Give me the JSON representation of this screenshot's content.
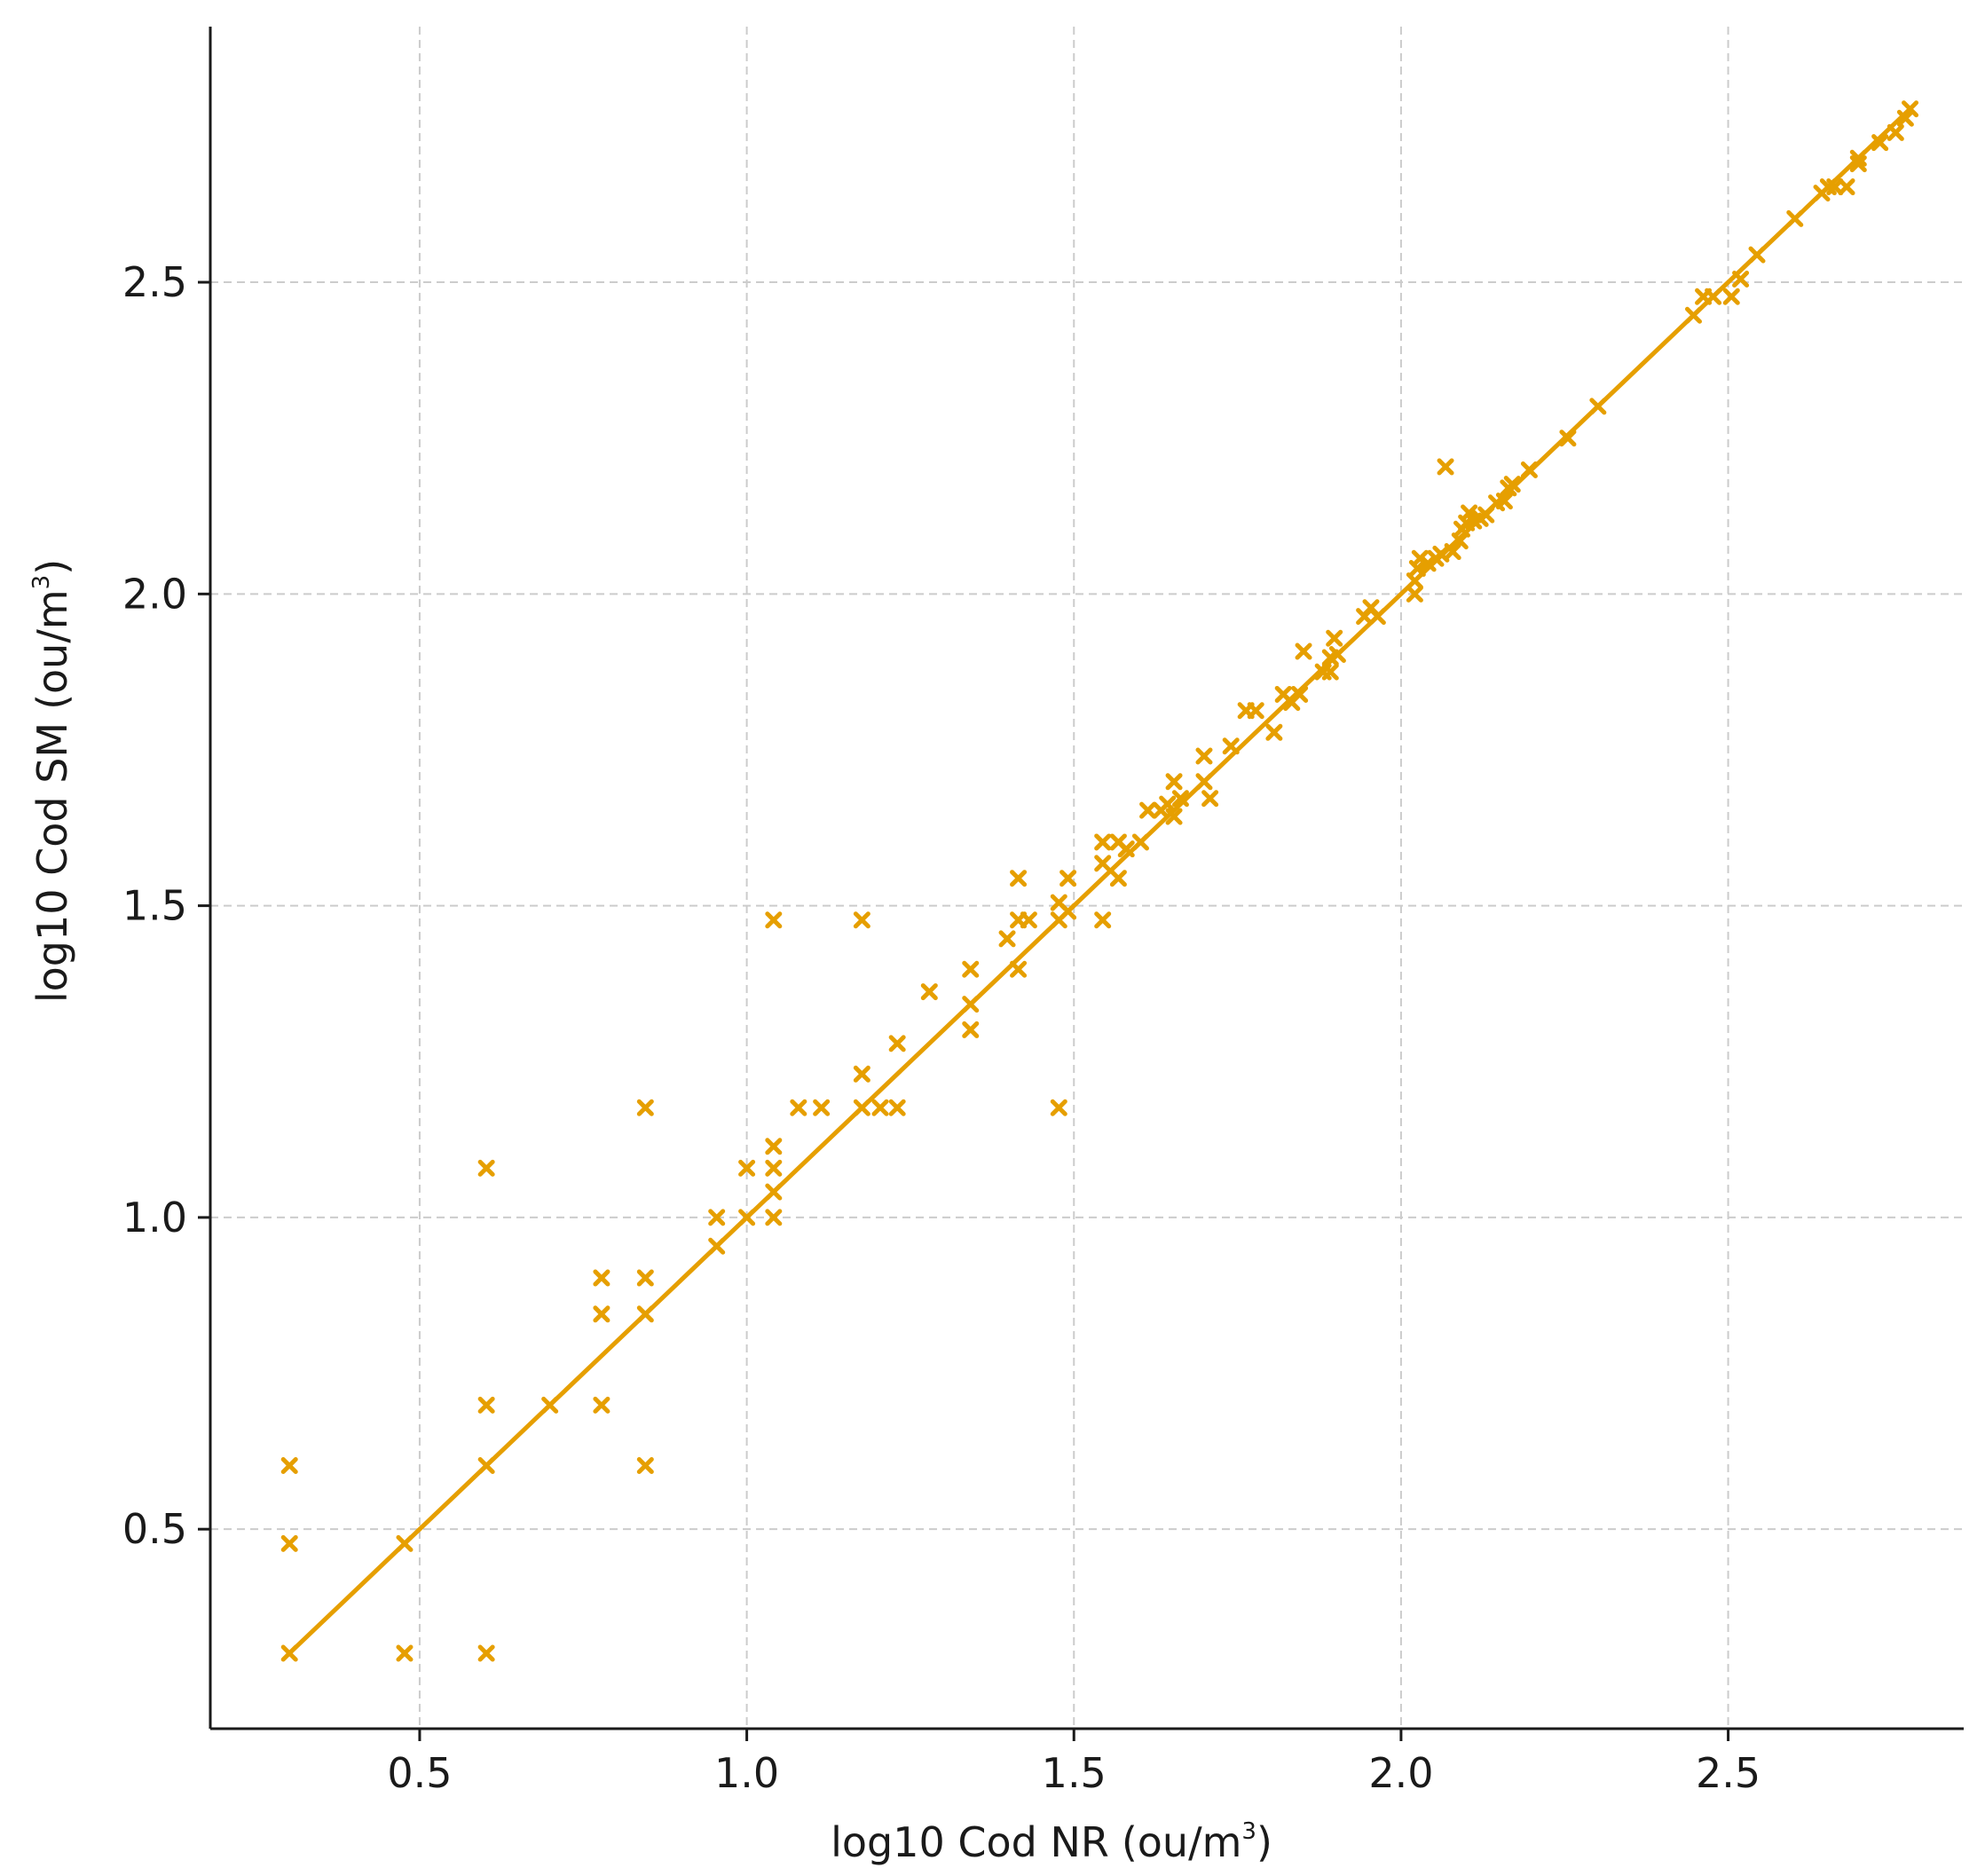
{
  "chart_data": {
    "type": "scatter",
    "title": "",
    "xlabel": {
      "main": "log10 Cod NR",
      "unit_open": "(ou/m",
      "unit_sup": "3",
      "unit_close": ")"
    },
    "ylabel": {
      "main": "log10 Cod SM",
      "unit_open": "(ou/m",
      "unit_sup": "3",
      "unit_close": ")"
    },
    "xlim": [
      0.18,
      2.86
    ],
    "ylim": [
      0.18,
      2.91
    ],
    "xticks": [
      0.5,
      1.0,
      1.5,
      2.0,
      2.5
    ],
    "xtick_labels": [
      "0.5",
      "1.0",
      "1.5",
      "2.0",
      "2.5"
    ],
    "yticks": [
      0.5,
      1.0,
      1.5,
      2.0,
      2.5
    ],
    "ytick_labels": [
      "0.5",
      "1.0",
      "1.5",
      "2.0",
      "2.5"
    ],
    "grid": true,
    "legend": "none",
    "color": "#E69F00",
    "marker": "x",
    "fit_line": {
      "x": [
        0.301,
        2.778
      ],
      "y": [
        0.301,
        2.778
      ]
    },
    "points": [
      [
        0.301,
        0.301
      ],
      [
        0.301,
        0.477
      ],
      [
        0.301,
        0.602
      ],
      [
        0.477,
        0.301
      ],
      [
        0.477,
        0.477
      ],
      [
        0.602,
        0.301
      ],
      [
        0.602,
        0.602
      ],
      [
        0.602,
        0.699
      ],
      [
        0.602,
        1.079
      ],
      [
        0.699,
        0.699
      ],
      [
        0.778,
        0.699
      ],
      [
        0.778,
        0.845
      ],
      [
        0.778,
        0.903
      ],
      [
        0.845,
        0.602
      ],
      [
        0.845,
        0.845
      ],
      [
        0.845,
        0.903
      ],
      [
        0.845,
        1.176
      ],
      [
        0.954,
        0.954
      ],
      [
        0.954,
        1.0
      ],
      [
        1.0,
        1.0
      ],
      [
        1.0,
        1.079
      ],
      [
        1.041,
        1.0
      ],
      [
        1.041,
        1.041
      ],
      [
        1.041,
        1.079
      ],
      [
        1.041,
        1.114
      ],
      [
        1.041,
        1.477
      ],
      [
        1.079,
        1.176
      ],
      [
        1.114,
        1.176
      ],
      [
        1.176,
        1.176
      ],
      [
        1.176,
        1.23
      ],
      [
        1.176,
        1.477
      ],
      [
        1.204,
        1.176
      ],
      [
        1.23,
        1.176
      ],
      [
        1.23,
        1.279
      ],
      [
        1.279,
        1.362
      ],
      [
        1.342,
        1.301
      ],
      [
        1.342,
        1.342
      ],
      [
        1.342,
        1.398
      ],
      [
        1.398,
        1.447
      ],
      [
        1.415,
        1.398
      ],
      [
        1.415,
        1.477
      ],
      [
        1.415,
        1.544
      ],
      [
        1.431,
        1.477
      ],
      [
        1.477,
        1.176
      ],
      [
        1.477,
        1.477
      ],
      [
        1.477,
        1.505
      ],
      [
        1.491,
        1.491
      ],
      [
        1.491,
        1.544
      ],
      [
        1.544,
        1.477
      ],
      [
        1.544,
        1.568
      ],
      [
        1.544,
        1.602
      ],
      [
        1.568,
        1.544
      ],
      [
        1.568,
        1.602
      ],
      [
        1.58,
        1.591
      ],
      [
        1.602,
        1.602
      ],
      [
        1.613,
        1.653
      ],
      [
        1.633,
        1.653
      ],
      [
        1.643,
        1.663
      ],
      [
        1.653,
        1.643
      ],
      [
        1.653,
        1.699
      ],
      [
        1.663,
        1.672
      ],
      [
        1.699,
        1.699
      ],
      [
        1.699,
        1.74
      ],
      [
        1.708,
        1.672
      ],
      [
        1.74,
        1.756
      ],
      [
        1.763,
        1.813
      ],
      [
        1.778,
        1.813
      ],
      [
        1.806,
        1.778
      ],
      [
        1.82,
        1.839
      ],
      [
        1.833,
        1.826
      ],
      [
        1.845,
        1.839
      ],
      [
        1.851,
        1.908
      ],
      [
        1.881,
        1.875
      ],
      [
        1.892,
        1.875
      ],
      [
        1.892,
        1.898
      ],
      [
        1.898,
        1.929
      ],
      [
        1.903,
        1.903
      ],
      [
        1.944,
        1.964
      ],
      [
        1.954,
        1.978
      ],
      [
        1.964,
        1.964
      ],
      [
        2.021,
        2.0
      ],
      [
        2.021,
        2.021
      ],
      [
        2.025,
        2.041
      ],
      [
        2.029,
        2.057
      ],
      [
        2.041,
        2.049
      ],
      [
        2.053,
        2.057
      ],
      [
        2.061,
        2.064
      ],
      [
        2.068,
        2.204
      ],
      [
        2.079,
        2.068
      ],
      [
        2.09,
        2.085
      ],
      [
        2.093,
        2.104
      ],
      [
        2.1,
        2.114
      ],
      [
        2.104,
        2.13
      ],
      [
        2.111,
        2.117
      ],
      [
        2.121,
        2.121
      ],
      [
        2.13,
        2.127
      ],
      [
        2.146,
        2.146
      ],
      [
        2.158,
        2.149
      ],
      [
        2.164,
        2.17
      ],
      [
        2.17,
        2.176
      ],
      [
        2.196,
        2.199
      ],
      [
        2.255,
        2.25
      ],
      [
        2.301,
        2.301
      ],
      [
        2.447,
        2.447
      ],
      [
        2.462,
        2.477
      ],
      [
        2.477,
        2.477
      ],
      [
        2.505,
        2.477
      ],
      [
        2.519,
        2.505
      ],
      [
        2.544,
        2.544
      ],
      [
        2.602,
        2.602
      ],
      [
        2.643,
        2.643
      ],
      [
        2.653,
        2.653
      ],
      [
        2.663,
        2.653
      ],
      [
        2.681,
        2.653
      ],
      [
        2.699,
        2.69
      ],
      [
        2.699,
        2.699
      ],
      [
        2.732,
        2.724
      ],
      [
        2.756,
        2.74
      ],
      [
        2.771,
        2.763
      ],
      [
        2.778,
        2.778
      ]
    ]
  }
}
